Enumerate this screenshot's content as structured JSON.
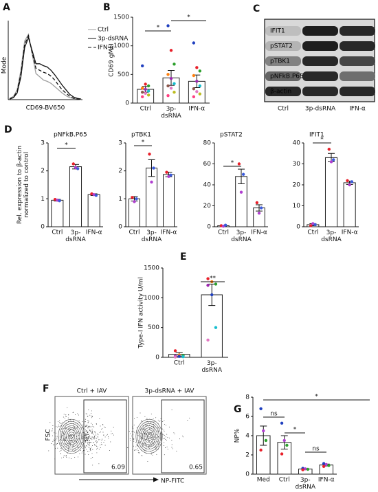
{
  "chart_data": [
    {
      "type": "flow-histogram",
      "panel": "A",
      "ylabel": "Mode",
      "xlabel": "CD69-BV650",
      "series": [
        {
          "name": "Ctrl",
          "color": "#9e9e9e",
          "dash": "none",
          "values": [
            2,
            5,
            15,
            45,
            90,
            100,
            70,
            40,
            35,
            30,
            28,
            25,
            20,
            15,
            10,
            6,
            3,
            2,
            1,
            0
          ]
        },
        {
          "name": "3p-dsRNA",
          "color": "#111111",
          "dash": "none",
          "values": [
            1,
            3,
            10,
            35,
            80,
            95,
            75,
            55,
            55,
            52,
            50,
            45,
            38,
            30,
            22,
            15,
            8,
            4,
            2,
            1
          ]
        },
        {
          "name": "IFN-α",
          "color": "#111111",
          "dash": "5,3",
          "values": [
            1,
            4,
            12,
            40,
            85,
            98,
            72,
            48,
            45,
            42,
            40,
            36,
            30,
            22,
            15,
            10,
            5,
            2,
            1,
            0
          ]
        }
      ]
    },
    {
      "type": "bar",
      "panel": "B",
      "ylabel": "CD69 gMFI",
      "categories": [
        "Ctrl",
        "3p-\ndsRNA",
        "IFN-α"
      ],
      "values": [
        240,
        440,
        380
      ],
      "errors": [
        50,
        130,
        110
      ],
      "points": [
        [
          650,
          330,
          300,
          260,
          240,
          210,
          190,
          170,
          140,
          110
        ],
        [
          1350,
          920,
          680,
          500,
          430,
          340,
          300,
          260,
          190,
          130
        ],
        [
          1050,
          620,
          560,
          480,
          380,
          300,
          250,
          200,
          160,
          110
        ]
      ],
      "point_colors": [
        "#1f3fbf",
        "#e8202a",
        "#2ca02c",
        "#ff7f0e",
        "#9c27b0",
        "#17becf",
        "#8c564b",
        "#e377c2",
        "#bcbd22",
        "#ff4081"
      ],
      "ylim": [
        0,
        1500
      ],
      "yticks": [
        0,
        500,
        1000,
        1500
      ],
      "annotations": [
        "*",
        "*"
      ]
    },
    {
      "type": "blot",
      "panel": "C",
      "rows": [
        "IFIT1",
        "pSTAT2",
        "pTBK1",
        "pNFkB.P65",
        "β-actin"
      ],
      "lanes": [
        "Ctrl",
        "3p-dsRNA",
        "IFN-α"
      ]
    },
    {
      "type": "bar",
      "panel": "D",
      "title": "pNFkB.P65",
      "ylabel": "Rel. expression to β-actin\nnormalized to control",
      "categories": [
        "Ctrl",
        "3p-\ndsRNA",
        "IFN-α"
      ],
      "values": [
        0.95,
        2.15,
        1.15
      ],
      "errors": [
        0.03,
        0.08,
        0.03
      ],
      "points": [
        [
          0.98,
          0.95,
          0.93
        ],
        [
          2.25,
          2.12,
          2.08
        ],
        [
          1.18,
          1.15,
          1.12
        ]
      ],
      "point_colors": [
        "#e8202a",
        "#b03fd0",
        "#3b5bdb"
      ],
      "ylim": [
        0,
        3
      ],
      "yticks": [
        0,
        1,
        2,
        3
      ],
      "annotations": [
        "*"
      ]
    },
    {
      "type": "bar",
      "title": "pTBK1",
      "categories": [
        "Ctrl",
        "3p-\ndsRNA",
        "IFN-α"
      ],
      "values": [
        1.0,
        2.1,
        1.87
      ],
      "errors": [
        0.08,
        0.3,
        0.08
      ],
      "points": [
        [
          1.05,
          0.9,
          1.0
        ],
        [
          2.6,
          1.6,
          2.1
        ],
        [
          1.95,
          1.8,
          1.85
        ]
      ],
      "point_colors": [
        "#e8202a",
        "#b03fd0",
        "#3b5bdb"
      ],
      "ylim": [
        0,
        3
      ],
      "yticks": [
        0,
        1,
        2,
        3
      ],
      "annotations": [
        "*"
      ]
    },
    {
      "type": "bar",
      "title": "pSTAT2",
      "categories": [
        "Ctrl",
        "3p-\ndsRNA",
        "IFN-α"
      ],
      "values": [
        1,
        48,
        18
      ],
      "errors": [
        0.5,
        7,
        3
      ],
      "points": [
        [
          1,
          0.5,
          1.5
        ],
        [
          60,
          33,
          50
        ],
        [
          23,
          13,
          18
        ]
      ],
      "point_colors": [
        "#e8202a",
        "#b03fd0",
        "#3b5bdb"
      ],
      "ylim": [
        0,
        80
      ],
      "yticks": [
        0,
        20,
        40,
        60,
        80
      ],
      "annotations": [
        "*"
      ]
    },
    {
      "type": "bar",
      "title": "IFIT1",
      "categories": [
        "Ctrl",
        "3p-\ndsRNA",
        "IFN-α"
      ],
      "values": [
        1,
        33,
        21
      ],
      "errors": [
        0.5,
        2,
        0.8
      ],
      "points": [
        [
          0.5,
          1.5,
          1
        ],
        [
          37,
          31,
          32
        ],
        [
          22,
          20,
          21.5
        ]
      ],
      "point_colors": [
        "#e8202a",
        "#b03fd0",
        "#3b5bdb"
      ],
      "ylim": [
        0,
        40
      ],
      "yticks": [
        0,
        10,
        20,
        30,
        40
      ],
      "annotations": [
        "*"
      ]
    },
    {
      "type": "bar",
      "panel": "E",
      "ylabel": "Type-I IFN activity U/ml",
      "categories": [
        "Ctrl",
        "3p-\ndsRNA"
      ],
      "values": [
        50,
        1050
      ],
      "errors": [
        30,
        180
      ],
      "points": [
        [
          110,
          40,
          30,
          20,
          15,
          10,
          5
        ],
        [
          1320,
          1270,
          1230,
          1210,
          1050,
          500,
          290
        ]
      ],
      "point_colors": [
        "#e8202a",
        "#ff7f0e",
        "#2ca02c",
        "#9c27b0",
        "#1f3fbf",
        "#17becf",
        "#e377c2"
      ],
      "ylim": [
        0,
        1500
      ],
      "yticks": [
        0,
        500,
        1000,
        1500
      ],
      "annotations": [
        "**"
      ]
    },
    {
      "type": "flow-dot",
      "panel": "F",
      "ylabel": "FSC",
      "xlabel": "NP-FITC",
      "plots": [
        {
          "title": "Ctrl + IAV",
          "gate_percent": 6.09
        },
        {
          "title": "3p-dsRNA + IAV",
          "gate_percent": 0.65
        }
      ]
    },
    {
      "type": "bar",
      "panel": "G",
      "ylabel": "NP%",
      "categories": [
        "Med",
        "Ctrl",
        "3p-\ndsRNA",
        "IFN-α"
      ],
      "values": [
        4.0,
        3.3,
        0.53,
        0.95
      ],
      "errors": [
        1.0,
        0.7,
        0.05,
        0.1
      ],
      "points": [
        [
          6.8,
          4.5,
          3.5,
          2.5
        ],
        [
          5.3,
          3.5,
          3.0,
          2.1
        ],
        [
          0.6,
          0.55,
          0.5,
          0.45
        ],
        [
          1.1,
          1.0,
          0.9,
          0.8
        ]
      ],
      "point_colors": [
        "#1f3fbf",
        "#b03fd0",
        "#2ca02c",
        "#e8202a"
      ],
      "ylim": [
        0,
        8
      ],
      "yticks": [
        0,
        2,
        4,
        6,
        8
      ],
      "annotations": [
        "*",
        "ns",
        "*",
        "ns"
      ]
    }
  ]
}
